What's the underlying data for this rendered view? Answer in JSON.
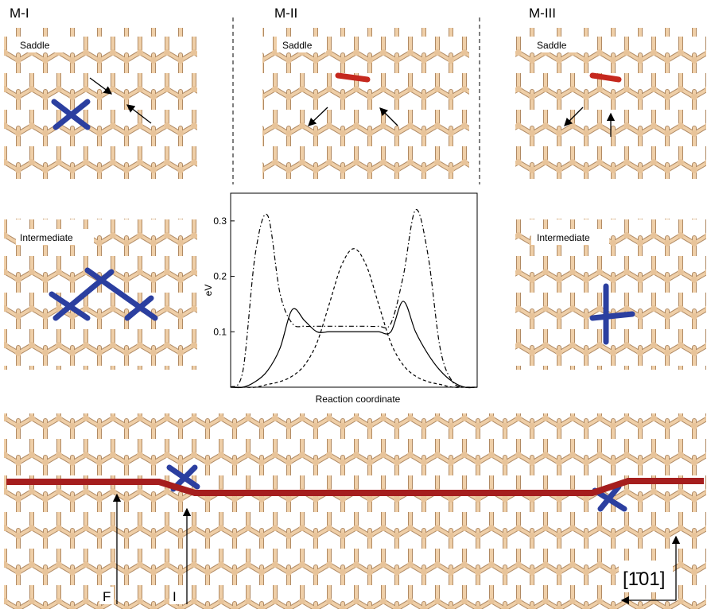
{
  "labels": {
    "m1": "M-I",
    "m2": "M-II",
    "m3": "M-III",
    "saddle1": "Saddle",
    "saddle2": "Saddle",
    "saddle3": "Saddle",
    "intermediate1": "Intermediate",
    "intermediate3": "Intermediate",
    "final": "F",
    "initial": "I",
    "direction": "[1̄01]"
  },
  "chart_data": {
    "type": "line",
    "x_label": "Reaction coordinate",
    "y_label": "eV",
    "x": [
      0,
      0.05,
      0.1,
      0.15,
      0.2,
      0.25,
      0.3,
      0.35,
      0.4,
      0.45,
      0.5,
      0.55,
      0.6,
      0.65,
      0.7,
      0.75,
      0.8,
      0.85,
      0.9,
      0.95,
      1
    ],
    "xlim": [
      0,
      1
    ],
    "ylim": [
      0,
      0.35
    ],
    "yticks": [
      0.1,
      0.2,
      0.3
    ],
    "series": [
      {
        "color": "#000000",
        "dash": "solid",
        "values": [
          0,
          0,
          0.01,
          0.03,
          0.07,
          0.14,
          0.12,
          0.1,
          0.1,
          0.1,
          0.1,
          0.1,
          0.1,
          0.1,
          0.155,
          0.1,
          0.06,
          0.03,
          0.01,
          0,
          0
        ]
      },
      {
        "color": "#000000",
        "dash": "dashed",
        "values": [
          0,
          0,
          0,
          0.005,
          0.01,
          0.02,
          0.04,
          0.08,
          0.15,
          0.22,
          0.25,
          0.22,
          0.15,
          0.08,
          0.04,
          0.02,
          0.01,
          0.005,
          0,
          0,
          0
        ]
      },
      {
        "color": "#000000",
        "dash": "dashdot",
        "values": [
          0,
          0.03,
          0.24,
          0.31,
          0.17,
          0.115,
          0.11,
          0.11,
          0.11,
          0.11,
          0.11,
          0.11,
          0.11,
          0.115,
          0.2,
          0.32,
          0.24,
          0.07,
          0.01,
          0,
          0
        ]
      }
    ]
  }
}
